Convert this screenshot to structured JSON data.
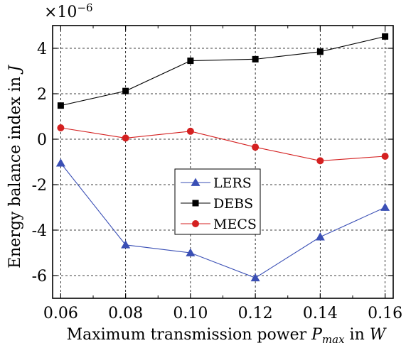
{
  "chart_data": {
    "type": "line",
    "title": "",
    "xlabel": "Maximum transmission power P_max in W",
    "xlabel_parts": {
      "prefix": "Maximum transmission power ",
      "P": "P",
      "sub": "max",
      "in": " in ",
      "W": "W"
    },
    "ylabel": "Energy balance index in J",
    "ylabel_parts": {
      "prefix": "Energy balance index in ",
      "J": "J"
    },
    "y_multiplier": {
      "base": "×10",
      "exp": "−6"
    },
    "x": [
      0.06,
      0.08,
      0.1,
      0.12,
      0.14,
      0.16
    ],
    "x_tick_labels": [
      "0.06",
      "0.08",
      "0.10",
      "0.12",
      "0.14",
      "0.16"
    ],
    "xlim": [
      0.0575,
      0.1625
    ],
    "ylim": [
      -7,
      5
    ],
    "y_ticks": [
      -6,
      -4,
      -2,
      0,
      2,
      4
    ],
    "y_tick_labels": [
      "-6",
      "-4",
      "-2",
      "0",
      "2",
      "4"
    ],
    "grid": true,
    "legend_position": "center",
    "series": [
      {
        "name": "LERS",
        "marker": "triangle",
        "color": "#3a4fb5",
        "values": [
          -1.05,
          -4.65,
          -5.0,
          -6.1,
          -4.3,
          -3.0
        ]
      },
      {
        "name": "DEBS",
        "marker": "square",
        "color": "#000000",
        "values": [
          1.48,
          2.12,
          3.45,
          3.52,
          3.85,
          4.52
        ]
      },
      {
        "name": "MECS",
        "marker": "circle",
        "color": "#d42020",
        "values": [
          0.5,
          0.05,
          0.35,
          -0.35,
          -0.95,
          -0.75
        ]
      }
    ]
  }
}
